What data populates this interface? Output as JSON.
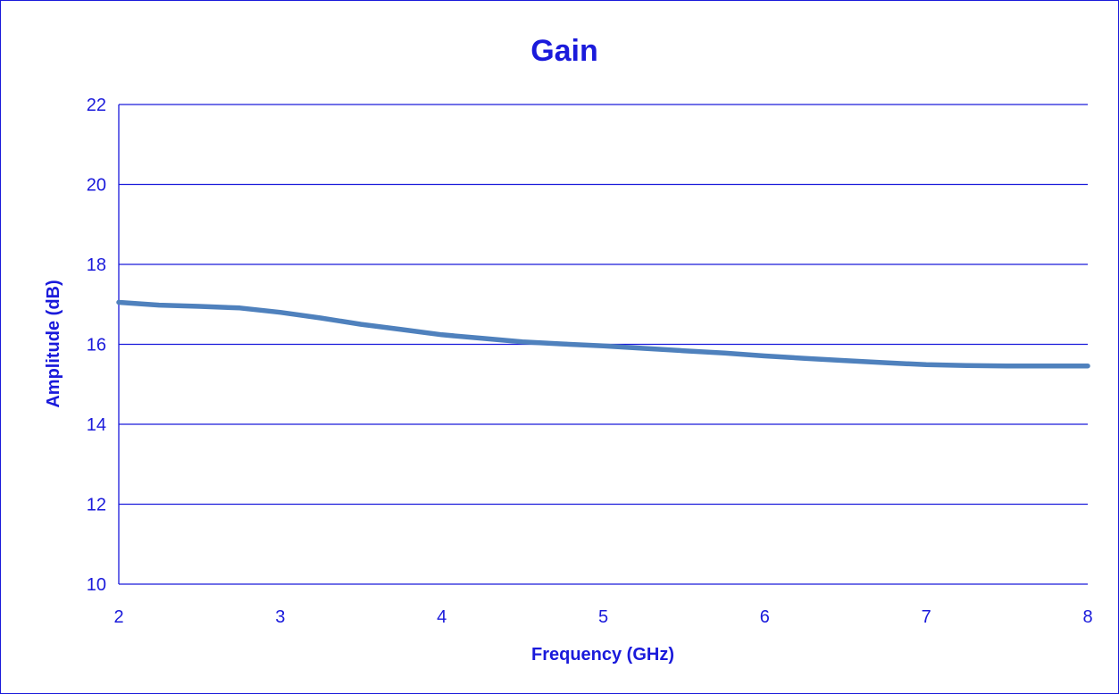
{
  "colors": {
    "text": "#1a1adb",
    "grid": "#1a1adb",
    "series": "#4f81bd",
    "background": "#ffffff"
  },
  "chart_data": {
    "type": "line",
    "title": "Gain",
    "xlabel": "Frequency (GHz)",
    "ylabel": "Amplitude (dB)",
    "xlim": [
      2,
      8
    ],
    "ylim": [
      10,
      22
    ],
    "xticks": [
      "2",
      "3",
      "4",
      "5",
      "6",
      "7",
      "8"
    ],
    "yticks": [
      "10",
      "12",
      "14",
      "16",
      "18",
      "20",
      "22"
    ],
    "grid": "horizontal",
    "legend": "none",
    "series": [
      {
        "x": [
          2.0,
          2.25,
          2.5,
          2.75,
          3.0,
          3.25,
          3.5,
          3.75,
          4.0,
          4.25,
          4.5,
          4.75,
          5.0,
          5.25,
          5.5,
          5.75,
          6.0,
          6.25,
          6.5,
          6.75,
          7.0,
          7.25,
          7.5,
          7.75,
          8.0
        ],
        "y": [
          17.05,
          16.98,
          16.95,
          16.91,
          16.8,
          16.66,
          16.5,
          16.37,
          16.24,
          16.15,
          16.06,
          16.01,
          15.96,
          15.9,
          15.84,
          15.78,
          15.71,
          15.65,
          15.59,
          15.54,
          15.49,
          15.47,
          15.46,
          15.46,
          15.46
        ]
      }
    ]
  }
}
